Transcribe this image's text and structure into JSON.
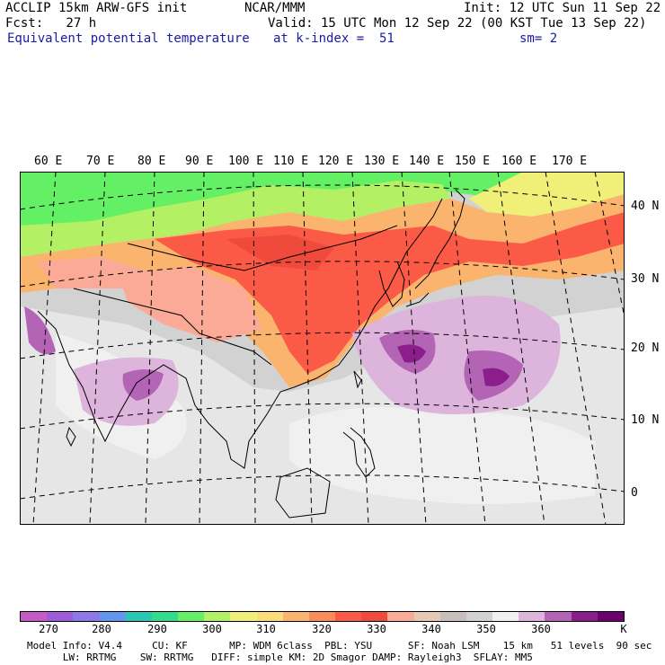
{
  "header": {
    "line1_left": "ACCLIP 15km ARW-GFS init",
    "line1_mid": "NCAR/MMM",
    "line1_right": "Init: 12 UTC Sun 11 Sep 22",
    "line2_left": "Fcst:   27 h",
    "line2_right": "Valid: 15 UTC Mon 12 Sep 22 (00 KST Tue 13 Sep 22)",
    "line3_left": "Equivalent potential temperature",
    "line3_mid": "at k-index =  51",
    "line3_right": "sm= 2"
  },
  "map": {
    "lon_labels": [
      "60 E",
      "70 E",
      "80 E",
      "90 E",
      "100 E",
      "110 E",
      "120 E",
      "130 E",
      "140 E",
      "150 E",
      "160 E",
      "170 E"
    ],
    "lat_labels": [
      "40 N",
      "30 N",
      "20 N",
      "10 N",
      "0"
    ]
  },
  "colorbar": {
    "colors": [
      "#c85ac8",
      "#a05adc",
      "#8c78e6",
      "#6496f0",
      "#28c8b4",
      "#32dc8c",
      "#64f064",
      "#b4f064",
      "#f0f078",
      "#fadc78",
      "#fab46e",
      "#fa8c5a",
      "#fa5a46",
      "#f04a3c",
      "#faaa96",
      "#e6c8b4",
      "#c8bebe",
      "#d2d2d2",
      "#f0f0f0",
      "#dcb4dc",
      "#b464b4",
      "#8c1e8c",
      "#6e006e"
    ],
    "ticks": [
      "270",
      "280",
      "290",
      "300",
      "310",
      "320",
      "330",
      "340",
      "350",
      "360"
    ],
    "unit": "K"
  },
  "model_info": {
    "line1": "Model Info: V4.4     CU: KF       MP: WDM 6class  PBL: YSU      SF: Noah LSM    15 km   51 levels  90 sec",
    "line2": "      LW: RRTMG    SW: RRTMG   DIFF: simple KM: 2D Smagor DAMP: Rayleigh3  SFLAY: MM5"
  }
}
